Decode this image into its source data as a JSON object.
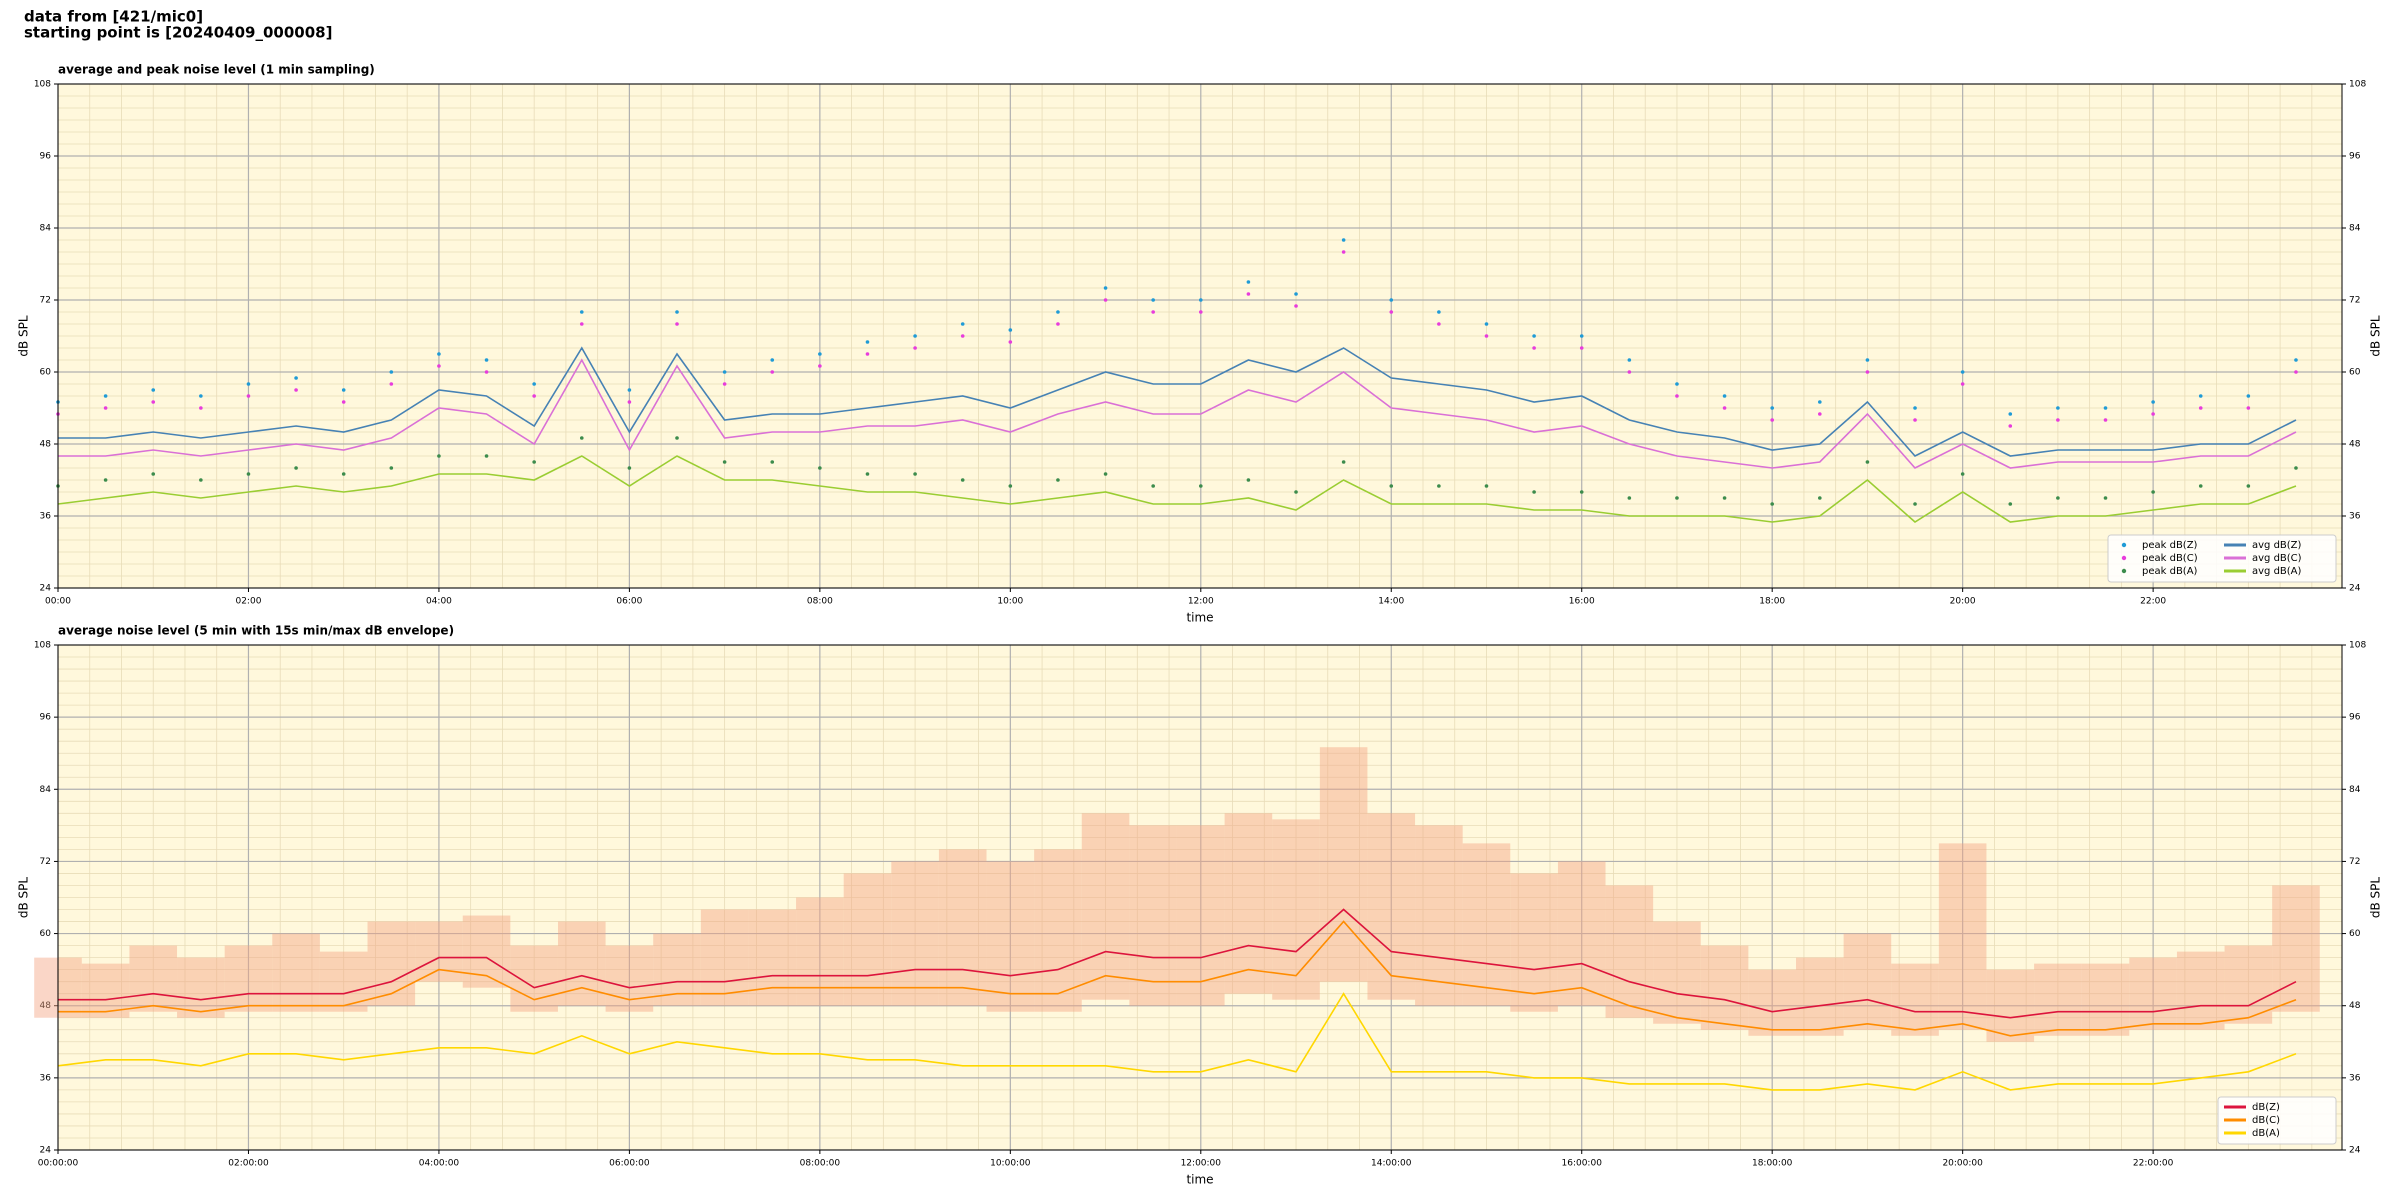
{
  "header": {
    "line1": "data from [421/mic0]",
    "line2": "starting point is [20240409_000008]"
  },
  "chart_data": [
    {
      "type": "line",
      "title": "average and peak noise level (1 min sampling)",
      "xlabel": "time",
      "ylabel": "dB SPL",
      "x": [
        "00:00",
        "00:30",
        "01:00",
        "01:30",
        "02:00",
        "02:30",
        "03:00",
        "03:30",
        "04:00",
        "04:30",
        "05:00",
        "05:30",
        "06:00",
        "06:30",
        "07:00",
        "07:30",
        "08:00",
        "08:30",
        "09:00",
        "09:30",
        "10:00",
        "10:30",
        "11:00",
        "11:30",
        "12:00",
        "12:30",
        "13:00",
        "13:30",
        "14:00",
        "14:30",
        "15:00",
        "15:30",
        "16:00",
        "16:30",
        "17:00",
        "17:30",
        "18:00",
        "18:30",
        "19:00",
        "19:30",
        "20:00",
        "20:30",
        "21:00",
        "21:30",
        "22:00",
        "22:30",
        "23:00",
        "23:30"
      ],
      "xlim": [
        "00:00",
        "23:59"
      ],
      "xticks": [
        "00:00",
        "02:00",
        "04:00",
        "06:00",
        "08:00",
        "10:00",
        "12:00",
        "14:00",
        "16:00",
        "18:00",
        "20:00",
        "22:00"
      ],
      "ylim": [
        24,
        108
      ],
      "yticks": [
        24,
        36,
        48,
        60,
        72,
        84,
        96,
        108
      ],
      "grid": true,
      "legend": "lower right",
      "background": "#fff8dc",
      "series": [
        {
          "name": "peak dB(Z)",
          "type": "scatter",
          "color": "#1f9bd6",
          "values": [
            55,
            56,
            57,
            56,
            58,
            59,
            57,
            60,
            63,
            62,
            58,
            70,
            57,
            70,
            60,
            62,
            63,
            65,
            66,
            68,
            67,
            70,
            74,
            72,
            72,
            75,
            73,
            82,
            72,
            70,
            68,
            66,
            66,
            62,
            58,
            56,
            54,
            55,
            62,
            54,
            60,
            53,
            54,
            54,
            55,
            56,
            56,
            62
          ]
        },
        {
          "name": "peak dB(C)",
          "type": "scatter",
          "color": "#e83cdc",
          "values": [
            53,
            54,
            55,
            54,
            56,
            57,
            55,
            58,
            61,
            60,
            56,
            68,
            55,
            68,
            58,
            60,
            61,
            63,
            64,
            66,
            65,
            68,
            72,
            70,
            70,
            73,
            71,
            80,
            70,
            68,
            66,
            64,
            64,
            60,
            56,
            54,
            52,
            53,
            60,
            52,
            58,
            51,
            52,
            52,
            53,
            54,
            54,
            60
          ]
        },
        {
          "name": "peak dB(A)",
          "type": "scatter",
          "color": "#3c8c4c",
          "values": [
            41,
            42,
            43,
            42,
            43,
            44,
            43,
            44,
            46,
            46,
            45,
            49,
            44,
            49,
            45,
            45,
            44,
            43,
            43,
            42,
            41,
            42,
            43,
            41,
            41,
            42,
            40,
            45,
            41,
            41,
            41,
            40,
            40,
            39,
            39,
            39,
            38,
            39,
            45,
            38,
            43,
            38,
            39,
            39,
            40,
            41,
            41,
            44
          ]
        },
        {
          "name": "avg dB(Z)",
          "type": "line",
          "color": "#4682b4",
          "values": [
            49,
            49,
            50,
            49,
            50,
            51,
            50,
            52,
            57,
            56,
            51,
            64,
            50,
            63,
            52,
            53,
            53,
            54,
            55,
            56,
            54,
            57,
            60,
            58,
            58,
            62,
            60,
            64,
            59,
            58,
            57,
            55,
            56,
            52,
            50,
            49,
            47,
            48,
            55,
            46,
            50,
            46,
            47,
            47,
            47,
            48,
            48,
            52
          ]
        },
        {
          "name": "avg dB(C)",
          "type": "line",
          "color": "#da70d6",
          "values": [
            46,
            46,
            47,
            46,
            47,
            48,
            47,
            49,
            54,
            53,
            48,
            62,
            47,
            61,
            49,
            50,
            50,
            51,
            51,
            52,
            50,
            53,
            55,
            53,
            53,
            57,
            55,
            60,
            54,
            53,
            52,
            50,
            51,
            48,
            46,
            45,
            44,
            45,
            53,
            44,
            48,
            44,
            45,
            45,
            45,
            46,
            46,
            50
          ]
        },
        {
          "name": "avg dB(A)",
          "type": "line",
          "color": "#9acd32",
          "values": [
            38,
            39,
            40,
            39,
            40,
            41,
            40,
            41,
            43,
            43,
            42,
            46,
            41,
            46,
            42,
            42,
            41,
            40,
            40,
            39,
            38,
            39,
            40,
            38,
            38,
            39,
            37,
            42,
            38,
            38,
            38,
            37,
            37,
            36,
            36,
            36,
            35,
            36,
            42,
            35,
            40,
            35,
            36,
            36,
            37,
            38,
            38,
            41
          ]
        }
      ]
    },
    {
      "type": "line",
      "title": "average noise level (5 min with 15s min/max dB envelope)",
      "xlabel": "time",
      "ylabel": "dB SPL",
      "x": [
        "00:00:00",
        "00:30:00",
        "01:00:00",
        "01:30:00",
        "02:00:00",
        "02:30:00",
        "03:00:00",
        "03:30:00",
        "04:00:00",
        "04:30:00",
        "05:00:00",
        "05:30:00",
        "06:00:00",
        "06:30:00",
        "07:00:00",
        "07:30:00",
        "08:00:00",
        "08:30:00",
        "09:00:00",
        "09:30:00",
        "10:00:00",
        "10:30:00",
        "11:00:00",
        "11:30:00",
        "12:00:00",
        "12:30:00",
        "13:00:00",
        "13:30:00",
        "14:00:00",
        "14:30:00",
        "15:00:00",
        "15:30:00",
        "16:00:00",
        "16:30:00",
        "17:00:00",
        "17:30:00",
        "18:00:00",
        "18:30:00",
        "19:00:00",
        "19:30:00",
        "20:00:00",
        "20:30:00",
        "21:00:00",
        "21:30:00",
        "22:00:00",
        "22:30:00",
        "23:00:00",
        "23:30:00"
      ],
      "xlim": [
        "00:00:00",
        "23:59:00"
      ],
      "xticks": [
        "00:00:00",
        "02:00:00",
        "04:00:00",
        "06:00:00",
        "08:00:00",
        "10:00:00",
        "12:00:00",
        "14:00:00",
        "16:00:00",
        "18:00:00",
        "20:00:00",
        "22:00:00"
      ],
      "ylim": [
        24,
        108
      ],
      "yticks": [
        24,
        36,
        48,
        60,
        72,
        84,
        96,
        108
      ],
      "grid": true,
      "legend": "lower right",
      "background": "#fff8dc",
      "envelope_color": "#f4a582",
      "envelope_min": [
        46,
        46,
        47,
        46,
        47,
        47,
        47,
        48,
        52,
        51,
        47,
        48,
        47,
        48,
        48,
        48,
        48,
        48,
        48,
        48,
        47,
        47,
        49,
        48,
        48,
        50,
        49,
        52,
        49,
        48,
        48,
        47,
        48,
        46,
        45,
        44,
        43,
        43,
        44,
        43,
        44,
        42,
        43,
        43,
        44,
        44,
        45,
        47
      ],
      "envelope_max": [
        56,
        55,
        58,
        56,
        58,
        60,
        57,
        62,
        62,
        63,
        58,
        62,
        58,
        60,
        64,
        64,
        66,
        70,
        72,
        74,
        72,
        74,
        80,
        78,
        78,
        80,
        79,
        91,
        80,
        78,
        75,
        70,
        72,
        68,
        62,
        58,
        54,
        56,
        60,
        55,
        75,
        54,
        55,
        55,
        56,
        57,
        58,
        68
      ],
      "series": [
        {
          "name": "dB(Z)",
          "type": "line",
          "color": "#dc143c",
          "values": [
            49,
            49,
            50,
            49,
            50,
            50,
            50,
            52,
            56,
            56,
            51,
            53,
            51,
            52,
            52,
            53,
            53,
            53,
            54,
            54,
            53,
            54,
            57,
            56,
            56,
            58,
            57,
            64,
            57,
            56,
            55,
            54,
            55,
            52,
            50,
            49,
            47,
            48,
            49,
            47,
            47,
            46,
            47,
            47,
            47,
            48,
            48,
            52
          ]
        },
        {
          "name": "dB(C)",
          "type": "line",
          "color": "#ff8c00",
          "values": [
            47,
            47,
            48,
            47,
            48,
            48,
            48,
            50,
            54,
            53,
            49,
            51,
            49,
            50,
            50,
            51,
            51,
            51,
            51,
            51,
            50,
            50,
            53,
            52,
            52,
            54,
            53,
            62,
            53,
            52,
            51,
            50,
            51,
            48,
            46,
            45,
            44,
            44,
            45,
            44,
            45,
            43,
            44,
            44,
            45,
            45,
            46,
            49
          ]
        },
        {
          "name": "dB(A)",
          "type": "line",
          "color": "#ffd700",
          "values": [
            38,
            39,
            39,
            38,
            40,
            40,
            39,
            40,
            41,
            41,
            40,
            43,
            40,
            42,
            41,
            40,
            40,
            39,
            39,
            38,
            38,
            38,
            38,
            37,
            37,
            39,
            37,
            50,
            37,
            37,
            37,
            36,
            36,
            35,
            35,
            35,
            34,
            34,
            35,
            34,
            37,
            34,
            35,
            35,
            35,
            36,
            37,
            40
          ]
        }
      ]
    }
  ]
}
